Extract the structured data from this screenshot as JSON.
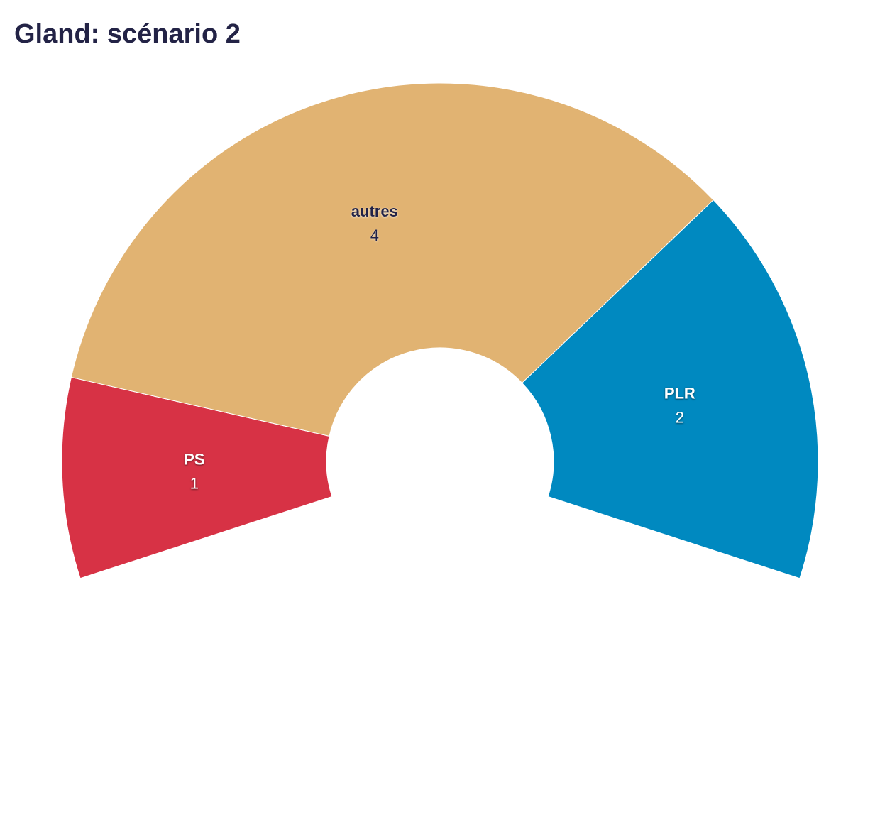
{
  "chart_data": {
    "type": "pie",
    "title": "Gland: scénario 2",
    "categories": [
      "PS",
      "autres",
      "PLR"
    ],
    "values": [
      1,
      4,
      2
    ],
    "colors": [
      "#d73245",
      "#e1b372",
      "#0089c0"
    ]
  }
}
